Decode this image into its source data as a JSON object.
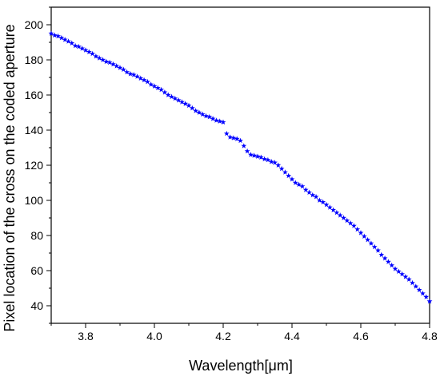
{
  "chart_data": {
    "type": "scatter",
    "xlabel": "Wavelength[μm]",
    "ylabel": "Pixel location of the cross on the coded aperture",
    "xlim": [
      3.7,
      4.8
    ],
    "ylim": [
      30,
      210
    ],
    "x_ticks": [
      3.8,
      4.0,
      4.2,
      4.4,
      4.6,
      4.8
    ],
    "x_tick_labels": [
      "3.8",
      "4.0",
      "4.2",
      "4.4",
      "4.6",
      "4.8"
    ],
    "y_ticks": [
      40,
      60,
      80,
      100,
      120,
      140,
      160,
      180,
      200
    ],
    "y_tick_labels": [
      "40",
      "60",
      "80",
      "100",
      "120",
      "140",
      "160",
      "180",
      "200"
    ],
    "marker": "star",
    "marker_color": "#0000ff",
    "grid": false,
    "series": [
      {
        "x": [
          3.7,
          3.71,
          3.72,
          3.73,
          3.74,
          3.75,
          3.76,
          3.77,
          3.78,
          3.79,
          3.8,
          3.81,
          3.82,
          3.83,
          3.84,
          3.85,
          3.86,
          3.87,
          3.88,
          3.89,
          3.9,
          3.91,
          3.92,
          3.93,
          3.94,
          3.95,
          3.96,
          3.97,
          3.98,
          3.99,
          4.0,
          4.01,
          4.02,
          4.03,
          4.04,
          4.05,
          4.06,
          4.07,
          4.08,
          4.09,
          4.1,
          4.11,
          4.12,
          4.13,
          4.14,
          4.15,
          4.16,
          4.17,
          4.18,
          4.19,
          4.2,
          4.21,
          4.22,
          4.23,
          4.24,
          4.25,
          4.26,
          4.27,
          4.28,
          4.29,
          4.3,
          4.31,
          4.32,
          4.33,
          4.34,
          4.35,
          4.36,
          4.37,
          4.38,
          4.39,
          4.4,
          4.41,
          4.42,
          4.43,
          4.44,
          4.45,
          4.46,
          4.47,
          4.48,
          4.49,
          4.5,
          4.51,
          4.52,
          4.53,
          4.54,
          4.55,
          4.56,
          4.57,
          4.58,
          4.59,
          4.6,
          4.61,
          4.62,
          4.63,
          4.64,
          4.65,
          4.66,
          4.67,
          4.68,
          4.69,
          4.7,
          4.71,
          4.72,
          4.73,
          4.74,
          4.75,
          4.76,
          4.77,
          4.78,
          4.79,
          4.8
        ],
        "y": [
          195,
          194,
          193.5,
          192.5,
          191.5,
          190.5,
          189.5,
          188,
          187.5,
          186.5,
          185.5,
          184.5,
          183.5,
          182,
          181,
          180,
          179,
          178.5,
          177.5,
          176.5,
          175.5,
          174.5,
          173,
          172,
          171.5,
          170.5,
          169.5,
          168.5,
          167.5,
          166,
          165,
          164,
          163,
          161.5,
          160,
          159,
          158,
          157,
          156,
          155,
          154,
          152.5,
          151,
          150,
          149,
          148,
          147.5,
          146.5,
          145.5,
          145,
          144.5,
          138,
          136,
          135.5,
          135,
          134,
          131,
          128,
          126,
          125.5,
          125,
          124.5,
          123.5,
          123,
          122,
          121.5,
          120,
          118,
          116,
          114,
          112,
          110,
          109,
          108,
          106,
          104.5,
          103,
          102,
          100,
          99,
          97.5,
          96,
          94.5,
          93,
          91.5,
          90,
          88.5,
          87,
          85.5,
          83.5,
          81.5,
          79.5,
          77.5,
          75.5,
          73.5,
          71.5,
          69,
          67,
          65,
          63,
          61,
          59.5,
          58,
          56.5,
          55,
          53,
          51,
          49,
          47,
          45,
          42.5
        ]
      }
    ]
  }
}
